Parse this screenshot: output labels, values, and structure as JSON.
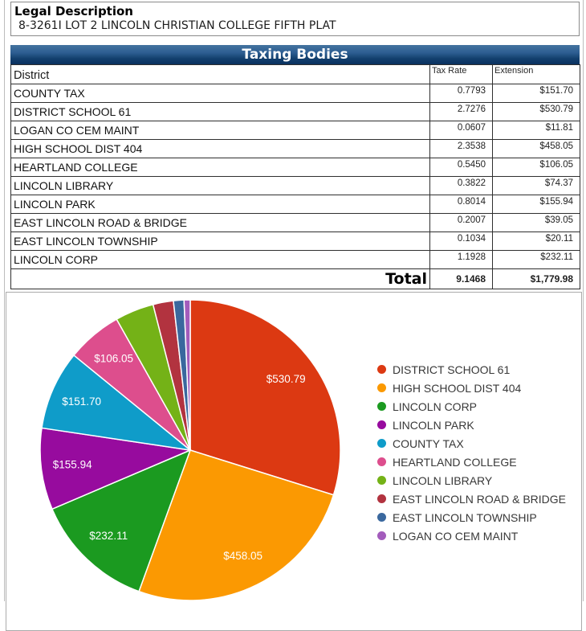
{
  "legal": {
    "title": "Legal Description",
    "value": "8-3261I LOT 2 LINCOLN CHRISTIAN COLLEGE FIFTH PLAT"
  },
  "table": {
    "title": "Taxing Bodies",
    "columns": [
      "District",
      "Tax Rate",
      "Extension"
    ],
    "rows": [
      {
        "district": "COUNTY TAX",
        "tax_rate": "0.7793",
        "extension": "$151.70"
      },
      {
        "district": "DISTRICT SCHOOL 61",
        "tax_rate": "2.7276",
        "extension": "$530.79"
      },
      {
        "district": "LOGAN CO CEM MAINT",
        "tax_rate": "0.0607",
        "extension": "$11.81"
      },
      {
        "district": "HIGH SCHOOL DIST 404",
        "tax_rate": "2.3538",
        "extension": "$458.05"
      },
      {
        "district": "HEARTLAND COLLEGE",
        "tax_rate": "0.5450",
        "extension": "$106.05"
      },
      {
        "district": "LINCOLN LIBRARY",
        "tax_rate": "0.3822",
        "extension": "$74.37"
      },
      {
        "district": "LINCOLN PARK",
        "tax_rate": "0.8014",
        "extension": "$155.94"
      },
      {
        "district": "EAST LINCOLN ROAD & BRIDGE",
        "tax_rate": "0.2007",
        "extension": "$39.05"
      },
      {
        "district": "EAST LINCOLN TOWNSHIP",
        "tax_rate": "0.1034",
        "extension": "$20.11"
      },
      {
        "district": "LINCOLN CORP",
        "tax_rate": "1.1928",
        "extension": "$232.11"
      }
    ],
    "total": {
      "label": "Total",
      "tax_rate": "9.1468",
      "extension": "$1,779.98"
    }
  },
  "chart_data": {
    "type": "pie",
    "title": "",
    "legend_position": "right",
    "start_angle_deg": 0,
    "direction": "clockwise",
    "total": 1779.98,
    "slices": [
      {
        "name": "DISTRICT SCHOOL 61",
        "value": 530.79,
        "label": "$530.79",
        "color": "#dc3912"
      },
      {
        "name": "HIGH SCHOOL DIST 404",
        "value": 458.05,
        "label": "$458.05",
        "color": "#fb9902"
      },
      {
        "name": "LINCOLN CORP",
        "value": 232.11,
        "label": "$232.11",
        "color": "#1b9a20"
      },
      {
        "name": "LINCOLN PARK",
        "value": 155.94,
        "label": "$155.94",
        "color": "#970b9e"
      },
      {
        "name": "COUNTY TAX",
        "value": 151.7,
        "label": "$151.70",
        "color": "#0f9cc9"
      },
      {
        "name": "HEARTLAND COLLEGE",
        "value": 106.05,
        "label": "$106.05",
        "color": "#dd4e8d"
      },
      {
        "name": "LINCOLN LIBRARY",
        "value": 74.37,
        "label": "",
        "color": "#74b217"
      },
      {
        "name": "EAST LINCOLN ROAD & BRIDGE",
        "value": 39.05,
        "label": "",
        "color": "#b2333f"
      },
      {
        "name": "EAST LINCOLN TOWNSHIP",
        "value": 20.11,
        "label": "",
        "color": "#3a689e"
      },
      {
        "name": "LOGAN CO CEM MAINT",
        "value": 11.81,
        "label": "",
        "color": "#a35cbc"
      }
    ],
    "slice_label_color": "#ffffff"
  },
  "colors": {
    "header_bar_top": "#44739f",
    "header_bar_bottom": "#0a3160",
    "table_border": "#2f2f2f",
    "panel_border": "#ababab"
  }
}
